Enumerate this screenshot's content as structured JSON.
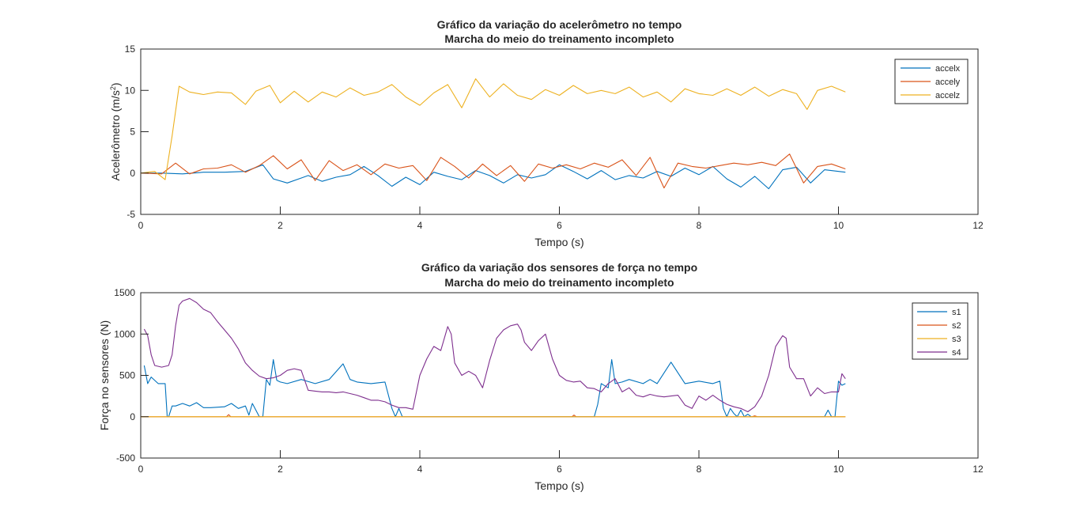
{
  "colors": {
    "series": [
      "#0072BD",
      "#D95319",
      "#EDB120",
      "#7E2F8E"
    ],
    "axis": "#262626",
    "background": "#ffffff"
  },
  "chart_data": [
    {
      "type": "line",
      "title": [
        "Gráfico da variação do acelerômetro no tempo",
        "Marcha do meio do treinamento incompleto"
      ],
      "xlabel": "Tempo (s)",
      "ylabel_main": "Acelerômetro (m/s",
      "ylabel_sup": "2",
      "ylabel_end": ")",
      "xlim": [
        0,
        12
      ],
      "ylim": [
        -5,
        15
      ],
      "xticks": [
        "0",
        "2",
        "4",
        "6",
        "8",
        "10",
        "12"
      ],
      "yticks": [
        "-5",
        "0",
        "5",
        "10",
        "15"
      ],
      "grid": false,
      "legend_position": "top-right",
      "series": [
        {
          "name": "accelx",
          "x": [
            0,
            0.3,
            0.6,
            0.9,
            1.2,
            1.5,
            1.75,
            1.9,
            2.1,
            2.4,
            2.6,
            2.8,
            3.0,
            3.2,
            3.4,
            3.6,
            3.8,
            4.0,
            4.2,
            4.4,
            4.6,
            4.8,
            5.0,
            5.2,
            5.4,
            5.6,
            5.8,
            6.0,
            6.2,
            6.4,
            6.6,
            6.8,
            7.0,
            7.2,
            7.4,
            7.6,
            7.8,
            8.0,
            8.2,
            8.4,
            8.6,
            8.8,
            9.0,
            9.2,
            9.4,
            9.6,
            9.8,
            10.1
          ],
          "y": [
            0,
            0,
            -0.1,
            0.1,
            0.1,
            0.2,
            1.0,
            -0.7,
            -1.2,
            -0.3,
            -1.0,
            -0.5,
            -0.2,
            0.8,
            -0.3,
            -1.6,
            -0.5,
            -1.4,
            0.1,
            -0.4,
            -0.8,
            0.3,
            -0.3,
            -1.2,
            -0.2,
            -0.6,
            -0.2,
            1.0,
            0.2,
            -0.7,
            0.3,
            -0.8,
            -0.3,
            -0.6,
            0.2,
            -0.4,
            0.6,
            -0.2,
            0.8,
            -0.7,
            -1.7,
            -0.4,
            -1.9,
            0.4,
            0.7,
            -1.2,
            0.4,
            0.1
          ]
        },
        {
          "name": "accely",
          "x": [
            0,
            0.3,
            0.5,
            0.7,
            0.9,
            1.1,
            1.3,
            1.5,
            1.7,
            1.9,
            2.1,
            2.3,
            2.5,
            2.7,
            2.9,
            3.1,
            3.3,
            3.5,
            3.7,
            3.9,
            4.1,
            4.3,
            4.5,
            4.7,
            4.9,
            5.1,
            5.3,
            5.5,
            5.7,
            5.9,
            6.1,
            6.3,
            6.5,
            6.7,
            6.9,
            7.1,
            7.3,
            7.5,
            7.7,
            7.9,
            8.1,
            8.3,
            8.5,
            8.7,
            8.9,
            9.1,
            9.3,
            9.5,
            9.7,
            9.9,
            10.1
          ],
          "y": [
            0,
            -0.1,
            1.2,
            -0.1,
            0.5,
            0.6,
            1.0,
            0.1,
            0.9,
            2.1,
            0.5,
            1.6,
            -0.9,
            1.5,
            0.3,
            1.0,
            -0.2,
            1.1,
            0.6,
            0.9,
            -0.9,
            1.9,
            0.8,
            -0.6,
            1.1,
            -0.3,
            0.9,
            -1.0,
            1.1,
            0.6,
            1.0,
            0.5,
            1.2,
            0.7,
            1.6,
            -0.3,
            1.9,
            -1.8,
            1.2,
            0.8,
            0.6,
            0.9,
            1.2,
            1.0,
            1.3,
            0.9,
            2.3,
            -1.2,
            0.8,
            1.1,
            0.5
          ]
        },
        {
          "name": "accelz",
          "x": [
            0,
            0.2,
            0.35,
            0.45,
            0.55,
            0.7,
            0.9,
            1.1,
            1.3,
            1.5,
            1.65,
            1.85,
            2.0,
            2.2,
            2.4,
            2.6,
            2.8,
            3.0,
            3.2,
            3.4,
            3.6,
            3.8,
            4.0,
            4.2,
            4.4,
            4.6,
            4.8,
            5.0,
            5.2,
            5.4,
            5.6,
            5.8,
            6.0,
            6.2,
            6.4,
            6.6,
            6.8,
            7.0,
            7.2,
            7.4,
            7.6,
            7.8,
            8.0,
            8.2,
            8.4,
            8.6,
            8.8,
            9.0,
            9.2,
            9.4,
            9.55,
            9.7,
            9.9,
            10.1
          ],
          "y": [
            0,
            0.2,
            -0.8,
            4.5,
            10.5,
            9.8,
            9.5,
            9.8,
            9.7,
            8.3,
            9.9,
            10.6,
            8.5,
            9.9,
            8.6,
            9.8,
            9.2,
            10.3,
            9.4,
            9.8,
            10.7,
            9.2,
            8.2,
            9.7,
            10.7,
            7.9,
            11.4,
            9.2,
            10.8,
            9.4,
            8.9,
            10.1,
            9.4,
            10.6,
            9.6,
            10.0,
            9.6,
            10.4,
            9.2,
            9.8,
            8.6,
            10.2,
            9.6,
            9.4,
            10.2,
            9.4,
            10.4,
            9.3,
            10.1,
            9.6,
            7.7,
            10.0,
            10.5,
            9.8
          ]
        }
      ]
    },
    {
      "type": "line",
      "title": [
        "Gráfico da variação dos sensores de força no tempo",
        "Marcha do meio do treinamento incompleto"
      ],
      "xlabel": "Tempo (s)",
      "ylabel": "Força no sensores (N)",
      "xlim": [
        0,
        12
      ],
      "ylim": [
        -500,
        1500
      ],
      "xticks": [
        "0",
        "2",
        "4",
        "6",
        "8",
        "10",
        "12"
      ],
      "yticks": [
        "-500",
        "0",
        "500",
        "1000",
        "1500"
      ],
      "grid": false,
      "legend_position": "top-right",
      "series": [
        {
          "name": "s1",
          "x": [
            0.05,
            0.1,
            0.15,
            0.25,
            0.3,
            0.35,
            0.38,
            0.4,
            0.45,
            0.5,
            0.6,
            0.7,
            0.8,
            0.9,
            1.0,
            1.2,
            1.3,
            1.4,
            1.5,
            1.55,
            1.6,
            1.65,
            1.7,
            1.75,
            1.8,
            1.85,
            1.9,
            1.95,
            2.0,
            2.1,
            2.3,
            2.5,
            2.7,
            2.9,
            3.0,
            3.1,
            3.3,
            3.5,
            3.6,
            3.65,
            3.7,
            3.75,
            3.8,
            6.5,
            6.55,
            6.6,
            6.7,
            6.75,
            6.8,
            6.9,
            7.0,
            7.2,
            7.3,
            7.4,
            7.6,
            7.8,
            8.0,
            8.2,
            8.3,
            8.35,
            8.4,
            8.45,
            8.5,
            8.55,
            8.6,
            8.65,
            8.7,
            8.75,
            9.8,
            9.85,
            9.9,
            9.95,
            10.0,
            10.05,
            10.1
          ],
          "y": [
            620,
            400,
            480,
            400,
            400,
            400,
            0,
            0,
            130,
            130,
            160,
            130,
            170,
            110,
            110,
            120,
            160,
            100,
            130,
            20,
            160,
            80,
            0,
            0,
            450,
            380,
            690,
            440,
            420,
            400,
            450,
            400,
            450,
            640,
            450,
            420,
            400,
            420,
            100,
            0,
            100,
            0,
            0,
            0,
            150,
            400,
            350,
            690,
            400,
            420,
            450,
            400,
            450,
            400,
            660,
            400,
            430,
            400,
            430,
            100,
            0,
            100,
            40,
            0,
            80,
            0,
            30,
            0,
            0,
            80,
            0,
            0,
            430,
            380,
            400
          ]
        },
        {
          "name": "s2",
          "x": [
            0,
            1.23,
            1.26,
            1.29,
            6.18,
            6.21,
            6.24,
            8.76,
            8.8,
            8.84,
            10.1
          ],
          "y": [
            0,
            0,
            25,
            0,
            0,
            20,
            0,
            0,
            10,
            0,
            0
          ]
        },
        {
          "name": "s3",
          "x": [
            0,
            10.1
          ],
          "y": [
            0,
            0
          ]
        },
        {
          "name": "s4",
          "x": [
            0.05,
            0.1,
            0.15,
            0.2,
            0.3,
            0.4,
            0.45,
            0.5,
            0.55,
            0.6,
            0.7,
            0.8,
            0.9,
            1.0,
            1.1,
            1.2,
            1.3,
            1.4,
            1.5,
            1.6,
            1.7,
            1.8,
            1.9,
            2.0,
            2.1,
            2.2,
            2.3,
            2.4,
            2.5,
            2.6,
            2.7,
            2.8,
            2.9,
            3.0,
            3.1,
            3.2,
            3.3,
            3.4,
            3.5,
            3.6,
            3.7,
            3.8,
            3.9,
            4.0,
            4.1,
            4.2,
            4.3,
            4.4,
            4.45,
            4.5,
            4.6,
            4.7,
            4.8,
            4.9,
            5.0,
            5.1,
            5.2,
            5.3,
            5.4,
            5.45,
            5.5,
            5.6,
            5.7,
            5.8,
            5.9,
            6.0,
            6.1,
            6.2,
            6.3,
            6.4,
            6.5,
            6.6,
            6.7,
            6.8,
            6.9,
            7.0,
            7.1,
            7.2,
            7.3,
            7.4,
            7.5,
            7.6,
            7.7,
            7.8,
            7.9,
            8.0,
            8.1,
            8.2,
            8.3,
            8.4,
            8.5,
            8.6,
            8.7,
            8.8,
            8.9,
            9.0,
            9.1,
            9.2,
            9.25,
            9.3,
            9.4,
            9.5,
            9.6,
            9.7,
            9.8,
            9.9,
            10.0,
            10.05,
            10.1
          ],
          "y": [
            1060,
            980,
            750,
            620,
            600,
            620,
            750,
            1100,
            1350,
            1400,
            1430,
            1380,
            1300,
            1260,
            1150,
            1050,
            950,
            820,
            650,
            560,
            490,
            460,
            470,
            500,
            560,
            580,
            560,
            320,
            310,
            300,
            300,
            290,
            300,
            280,
            260,
            230,
            200,
            200,
            180,
            140,
            110,
            110,
            90,
            500,
            700,
            850,
            800,
            1090,
            1000,
            650,
            500,
            550,
            500,
            350,
            680,
            950,
            1050,
            1100,
            1120,
            1050,
            900,
            800,
            920,
            1000,
            700,
            500,
            440,
            420,
            430,
            350,
            340,
            300,
            400,
            460,
            300,
            350,
            260,
            240,
            270,
            250,
            240,
            250,
            260,
            140,
            100,
            250,
            200,
            260,
            200,
            150,
            120,
            100,
            60,
            120,
            250,
            500,
            850,
            980,
            950,
            600,
            460,
            460,
            250,
            350,
            280,
            300,
            300,
            520,
            460
          ]
        }
      ]
    }
  ]
}
